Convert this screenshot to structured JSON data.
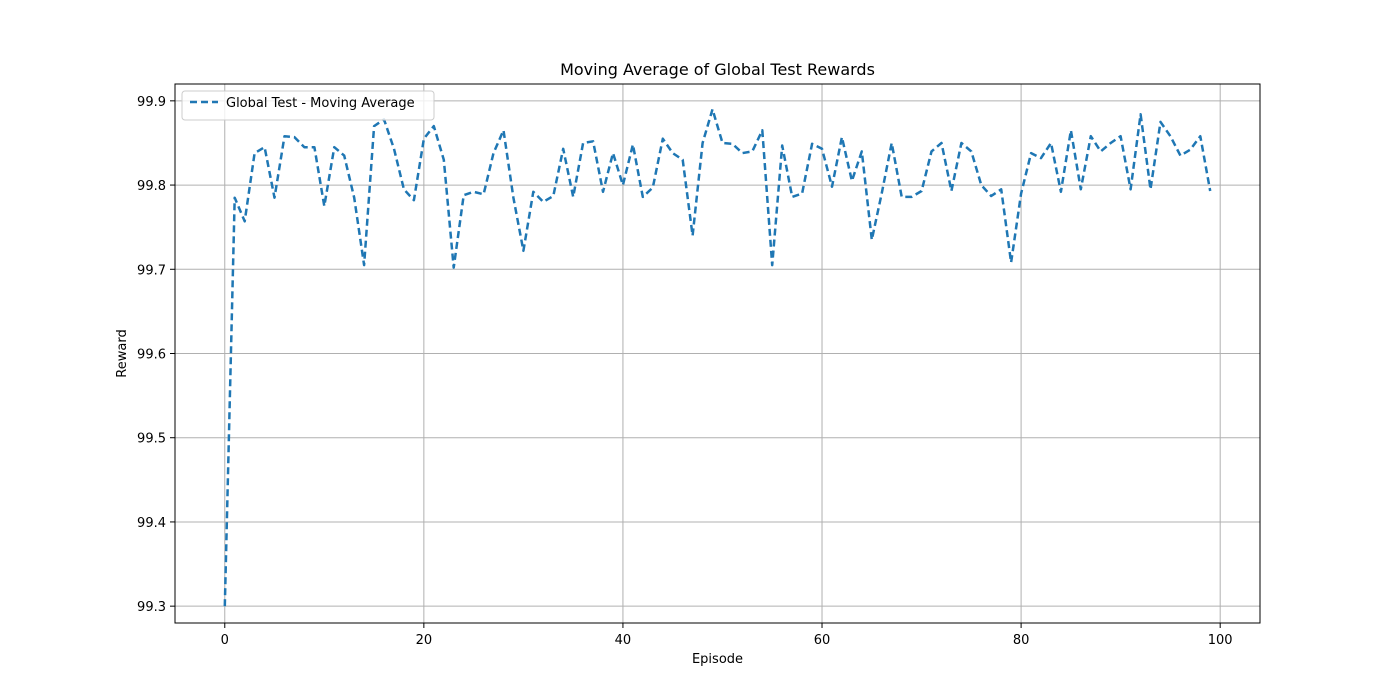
{
  "chart_data": {
    "type": "line",
    "title": "Moving Average of Global Test Rewards",
    "xlabel": "Episode",
    "ylabel": "Reward",
    "xlim": [
      -5,
      104
    ],
    "ylim": [
      99.28,
      99.92
    ],
    "xticks": [
      0,
      20,
      40,
      60,
      80,
      100
    ],
    "yticks": [
      99.3,
      99.4,
      99.5,
      99.6,
      99.7,
      99.8,
      99.9
    ],
    "xtick_labels": [
      "0",
      "20",
      "40",
      "60",
      "80",
      "100"
    ],
    "ytick_labels": [
      "99.3",
      "99.4",
      "99.5",
      "99.6",
      "99.7",
      "99.8",
      "99.9"
    ],
    "grid": true,
    "legend_position": "top-left",
    "series": [
      {
        "name": "Global Test - Moving Average",
        "color": "#1f77b4",
        "line_style": "dashed",
        "x": [
          0,
          1,
          2,
          3,
          4,
          5,
          6,
          7,
          8,
          9,
          10,
          11,
          12,
          13,
          14,
          15,
          16,
          17,
          18,
          19,
          20,
          21,
          22,
          23,
          24,
          25,
          26,
          27,
          28,
          29,
          30,
          31,
          32,
          33,
          34,
          35,
          36,
          37,
          38,
          39,
          40,
          41,
          42,
          43,
          44,
          45,
          46,
          47,
          48,
          49,
          50,
          51,
          52,
          53,
          54,
          55,
          56,
          57,
          58,
          59,
          60,
          61,
          62,
          63,
          64,
          65,
          66,
          67,
          68,
          69,
          70,
          71,
          72,
          73,
          74,
          75,
          76,
          77,
          78,
          79,
          80,
          81,
          82,
          83,
          84,
          85,
          86,
          87,
          88,
          89,
          90,
          91,
          92,
          93,
          94,
          95,
          96,
          97,
          98,
          99
        ],
        "values": [
          99.3,
          99.785,
          99.757,
          99.838,
          99.845,
          99.785,
          99.858,
          99.857,
          99.845,
          99.845,
          99.775,
          99.845,
          99.835,
          99.785,
          99.705,
          99.87,
          99.878,
          99.843,
          99.795,
          99.782,
          99.855,
          99.87,
          99.83,
          99.702,
          99.788,
          99.792,
          99.789,
          99.838,
          99.865,
          99.785,
          99.722,
          99.792,
          99.78,
          99.787,
          99.843,
          99.786,
          99.85,
          99.852,
          99.792,
          99.838,
          99.8,
          99.848,
          99.786,
          99.797,
          99.855,
          99.838,
          99.83,
          99.74,
          99.85,
          99.89,
          99.85,
          99.849,
          99.838,
          99.84,
          99.865,
          99.705,
          99.847,
          99.786,
          99.79,
          99.849,
          99.843,
          99.798,
          99.857,
          99.805,
          99.84,
          99.735,
          99.79,
          99.85,
          99.786,
          99.786,
          99.793,
          99.84,
          99.85,
          99.793,
          99.85,
          99.84,
          99.8,
          99.787,
          99.795,
          99.708,
          99.79,
          99.838,
          99.832,
          99.85,
          99.792,
          99.865,
          99.795,
          99.858,
          99.84,
          99.85,
          99.858,
          99.795,
          99.884,
          99.795,
          99.875,
          99.858,
          99.835,
          99.842,
          99.858,
          99.793
        ]
      }
    ]
  }
}
